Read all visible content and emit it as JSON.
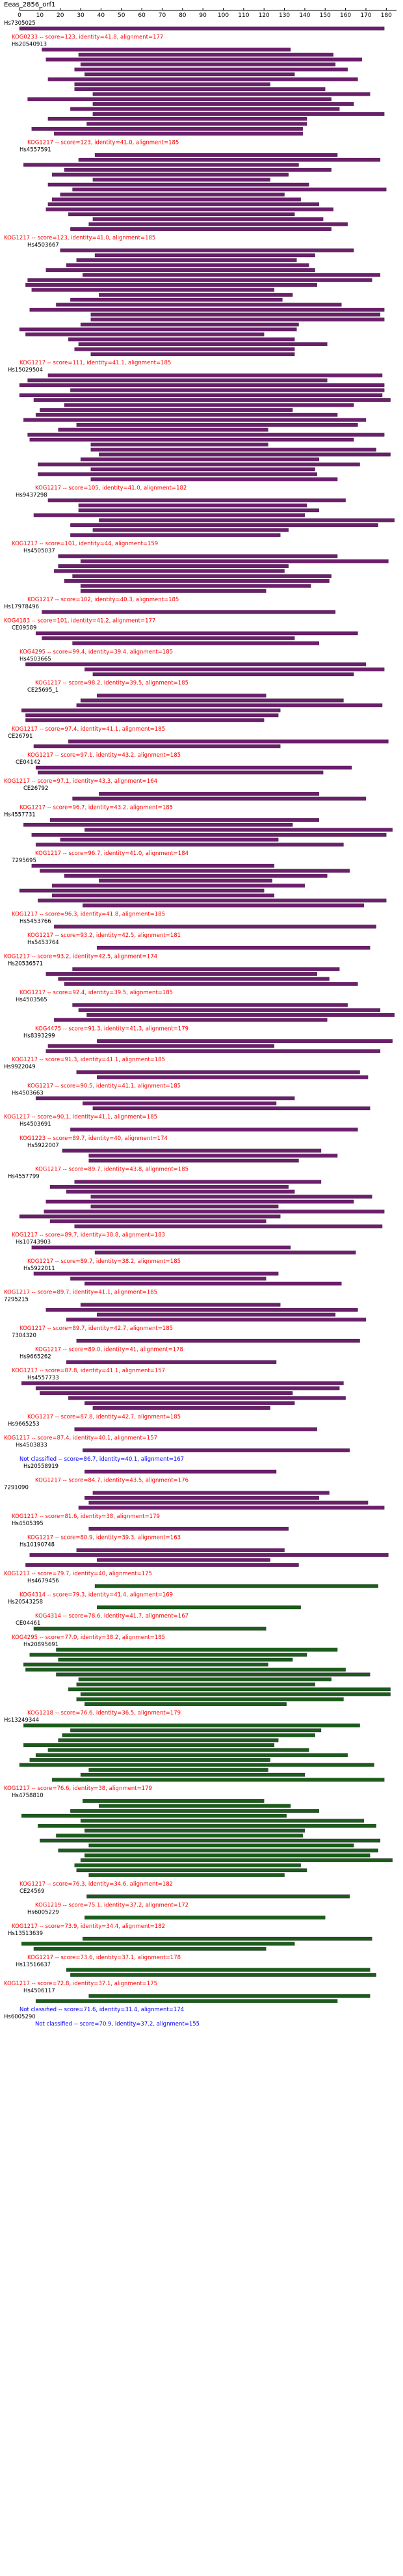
{
  "chart_data": {
    "type": "alignment-map",
    "title": "Eeas_2856_orf1",
    "xlim": [
      0,
      185
    ],
    "ticks": [
      0,
      10,
      20,
      30,
      40,
      50,
      60,
      70,
      80,
      90,
      100,
      110,
      120,
      130,
      140,
      150,
      160,
      170,
      180
    ],
    "colors": {
      "aligned": "#6b1f6b",
      "aligned_green": "#1a5c1a",
      "divider": "#2b1230",
      "kog_label": "#ff0000",
      "not_classified": "#0000ff"
    },
    "hits": [
      {
        "id": "Hs7305025",
        "label": "",
        "n": 1
      },
      {
        "id": "",
        "label": "KOG0233 -- score=123, identity=41.8, alignment=177",
        "n": 0
      },
      {
        "id": "Hs20540913",
        "label": "",
        "n": 18
      },
      {
        "id": "",
        "label": "KOG1217 -- score=123, identity=41.0, alignment=185",
        "n": 0
      },
      {
        "id": "Hs4557591",
        "label": "",
        "n": 16
      },
      {
        "id": "",
        "label": "KOG1217 -- score=123, identity=41.0, alignment=185",
        "n": 0
      },
      {
        "id": "Hs4503667",
        "label": "",
        "n": 22
      },
      {
        "id": "",
        "label": "KOG1217 -- score=111, identity=41.1, alignment=185",
        "n": 0
      },
      {
        "id": "Hs15029504",
        "label": "",
        "n": 22
      },
      {
        "id": "",
        "label": "KOG1217 -- score=105, identity=41.0, alignment=182",
        "n": 0
      },
      {
        "id": "Hs9437298",
        "label": "",
        "n": 8
      },
      {
        "id": "",
        "label": "KOG1217 -- score=101, identity=44, alignment=159",
        "n": 0
      },
      {
        "id": "Hs4505037",
        "label": "",
        "n": 8
      },
      {
        "id": "",
        "label": "KOG1217 -- score=102, identity=40.3, alignment=185",
        "n": 0
      },
      {
        "id": "Hs17978496",
        "label": "",
        "n": 1
      },
      {
        "id": "",
        "label": "KOG4183 -- score=101, identity=41.2, alignment=177",
        "n": 0
      },
      {
        "id": "CE09589",
        "label": "",
        "n": 3
      },
      {
        "id": "",
        "label": "KOG4295 -- score=99.4, identity=39.4, alignment=185",
        "n": 0
      },
      {
        "id": "Hs4503665",
        "label": "",
        "n": 3
      },
      {
        "id": "",
        "label": "KOG1217 -- score=98.2, identity=39.5, alignment=185",
        "n": 0
      },
      {
        "id": "CE25695_1",
        "label": "",
        "n": 6
      },
      {
        "id": "",
        "label": "KOG1217 -- score=97.4, identity=41.1, alignment=185",
        "n": 0
      },
      {
        "id": "CE26791",
        "label": "",
        "n": 2
      },
      {
        "id": "",
        "label": "KOG1217 -- score=97.1, identity=43.2, alignment=185",
        "n": 0
      },
      {
        "id": "CE04142",
        "label": "",
        "n": 2
      },
      {
        "id": "",
        "label": "KOG1217 -- score=97.1, identity=43.3, alignment=164",
        "n": 0
      },
      {
        "id": "CE26792",
        "label": "",
        "n": 2
      },
      {
        "id": "",
        "label": "KOG1217 -- score=96.7, identity=43.2, alignment=185",
        "n": 0
      },
      {
        "id": "Hs4557731",
        "label": "",
        "n": 6
      },
      {
        "id": "",
        "label": "KOG1217 -- score=96.7, identity=41.0, alignment=184",
        "n": 0
      },
      {
        "id": "7295695",
        "label": "",
        "n": 9
      },
      {
        "id": "",
        "label": "KOG1217 -- score=96.3, identity=41.8, alignment=185",
        "n": 0
      },
      {
        "id": "Hs5453766",
        "label": "",
        "n": 1
      },
      {
        "id": "",
        "label": "KOG1217 -- score=93.2, identity=42.5, alignment=181",
        "n": 0
      },
      {
        "id": "Hs5453764",
        "label": "",
        "n": 1
      },
      {
        "id": "",
        "label": "KOG1217 -- score=93.2, identity=42.5, alignment=174",
        "n": 0
      },
      {
        "id": "Hs20536571",
        "label": "",
        "n": 4
      },
      {
        "id": "",
        "label": "KOG1217 -- score=92.4, identity=39.5, alignment=185",
        "n": 0
      },
      {
        "id": "Hs4503565",
        "label": "",
        "n": 4
      },
      {
        "id": "",
        "label": "KOG4475 -- score=91.3, identity=41.3, alignment=179",
        "n": 0
      },
      {
        "id": "Hs8393299",
        "label": "",
        "n": 3
      },
      {
        "id": "",
        "label": "KOG1217 -- score=91.3, identity=41.1, alignment=185",
        "n": 0
      },
      {
        "id": "Hs9922049",
        "label": "",
        "n": 2
      },
      {
        "id": "",
        "label": "KOG1217 -- score=90.5, identity=41.1, alignment=185",
        "n": 0
      },
      {
        "id": "Hs4503663",
        "label": "",
        "n": 3
      },
      {
        "id": "",
        "label": "KOG1217 -- score=90.1, identity=41.1, alignment=185",
        "n": 0
      },
      {
        "id": "Hs4503691",
        "label": "",
        "n": 1
      },
      {
        "id": "",
        "label": "KOG1223 -- score=89.7, identity=40, alignment=174",
        "n": 0
      },
      {
        "id": "Hs5922007",
        "label": "",
        "n": 3
      },
      {
        "id": "",
        "label": "KOG1217 -- score=89.7, identity=43.8, alignment=185",
        "n": 0
      },
      {
        "id": "Hs4557799",
        "label": "",
        "n": 10
      },
      {
        "id": "",
        "label": "KOG1217 -- score=89.7, identity=38.8, alignment=183",
        "n": 0
      },
      {
        "id": "Hs10743903",
        "label": "",
        "n": 2
      },
      {
        "id": "",
        "label": "KOG1217 -- score=89.7, identity=38.2, alignment=185",
        "n": 0
      },
      {
        "id": "Hs5922011",
        "label": "",
        "n": 3
      },
      {
        "id": "",
        "label": "KOG1217 -- score=89.7, identity=41.1, alignment=185",
        "n": 0
      },
      {
        "id": "7295215",
        "label": "",
        "n": 4
      },
      {
        "id": "",
        "label": "KOG1217 -- score=89.7, identity=42.7, alignment=185",
        "n": 0
      },
      {
        "id": "7304320",
        "label": "",
        "n": 1
      },
      {
        "id": "",
        "label": "KOG1217 -- score=89.0, identity=41, alignment=178",
        "n": 0
      },
      {
        "id": "Hs9665262",
        "label": "",
        "n": 1
      },
      {
        "id": "",
        "label": "KOG1217 -- score=87.8, identity=41.1, alignment=157",
        "n": 0
      },
      {
        "id": "Hs4557733",
        "label": "",
        "n": 6
      },
      {
        "id": "",
        "label": "KOG1217 -- score=87.8, identity=42.7, alignment=185",
        "n": 0
      },
      {
        "id": "Hs9665253",
        "label": "",
        "n": 1
      },
      {
        "id": "",
        "label": "KOG1217 -- score=87.4, identity=40.1, alignment=157",
        "n": 0
      },
      {
        "id": "Hs4503833",
        "label": "",
        "n": 1
      },
      {
        "id": "",
        "label": "Not classified -- score=86.7, identity=40.1, alignment=167",
        "n": 0
      },
      {
        "id": "Hs20558919",
        "label": "",
        "n": 1
      },
      {
        "id": "",
        "label": "KOG1217 -- score=84.7, identity=43.5, alignment=176",
        "n": 0
      },
      {
        "id": "7291090",
        "label": "",
        "n": 4
      },
      {
        "id": "",
        "label": "KOG1217 -- score=81.6, identity=38, alignment=179",
        "n": 0
      },
      {
        "id": "Hs4505395",
        "label": "",
        "n": 1
      },
      {
        "id": "",
        "label": "KOG1217 -- score=80.9, identity=39.3, alignment=163",
        "n": 0
      },
      {
        "id": "Hs10190748",
        "label": "",
        "n": 4
      },
      {
        "id": "",
        "label": "KOG1217 -- score=79.7, identity=40, alignment=175",
        "n": 0
      },
      {
        "id": "Hs4679456",
        "label": "",
        "n": 1
      },
      {
        "id": "",
        "label": "KOG4314 -- score=79.3, identity=41.4, alignment=169",
        "n": 0
      },
      {
        "id": "Hs20543258",
        "label": "",
        "n": 1
      },
      {
        "id": "",
        "label": "KOG4314 -- score=78.6, identity=41.7, alignment=167",
        "n": 0
      },
      {
        "id": "CE04461",
        "label": "",
        "n": 1
      },
      {
        "id": "",
        "label": "KOG4295 -- score=77.0, identity=38.2, alignment=185",
        "n": 0
      },
      {
        "id": "Hs20895691",
        "label": "",
        "n": 12
      },
      {
        "id": "",
        "label": "KOG1218 -- score=76.6, identity=36.5, alignment=179",
        "n": 0
      },
      {
        "id": "Hs13249344",
        "label": "",
        "n": 12
      },
      {
        "id": "",
        "label": "KOG1217 -- score=76.6, identity=38, alignment=179",
        "n": 0
      },
      {
        "id": "Hs4758810",
        "label": "",
        "n": 16
      },
      {
        "id": "",
        "label": "KOG1217 -- score=76.3, identity=34.6, alignment=182",
        "n": 0
      },
      {
        "id": "CE24569",
        "label": "",
        "n": 1
      },
      {
        "id": "",
        "label": "KOG1219 -- score=75.1, identity=37.2, alignment=172",
        "n": 0
      },
      {
        "id": "Hs6005229",
        "label": "",
        "n": 1
      },
      {
        "id": "",
        "label": "KOG1217 -- score=73.9, identity=34.4, alignment=182",
        "n": 0
      },
      {
        "id": "Hs13513639",
        "label": "",
        "n": 3
      },
      {
        "id": "",
        "label": "KOG1217 -- score=73.6, identity=37.1, alignment=178",
        "n": 0
      },
      {
        "id": "Hs13516637",
        "label": "",
        "n": 2
      },
      {
        "id": "",
        "label": "KOG1217 -- score=72.8, identity=37.1, alignment=175",
        "n": 0
      },
      {
        "id": "Hs4506117",
        "label": "",
        "n": 2
      },
      {
        "id": "",
        "label": "Not classified -- score=71.6, identity=31.4, alignment=174",
        "n": 0
      },
      {
        "id": "Hs6005290",
        "label": "",
        "n": 0
      },
      {
        "id": "",
        "label": "Not classified -- score=70.9, identity=37.2, alignment=155",
        "n": 0
      }
    ]
  }
}
